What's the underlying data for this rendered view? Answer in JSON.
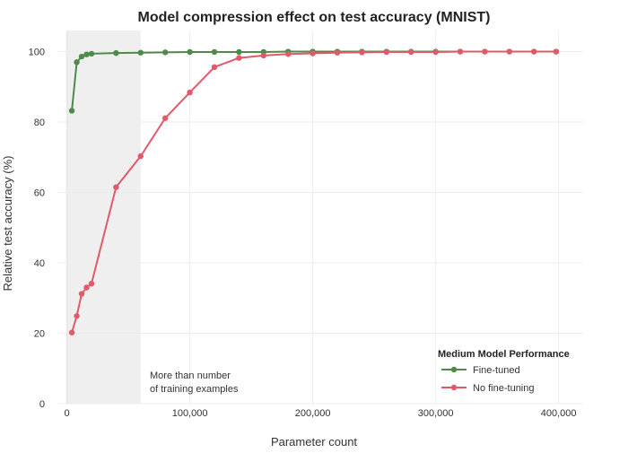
{
  "chart_data": {
    "type": "line",
    "title": "Model compression effect on test accuracy (MNIST)",
    "xlabel": "Parameter count",
    "ylabel": "Relative test accuracy (%)",
    "xlim": [
      -7000,
      420000
    ],
    "ylim": [
      0,
      106
    ],
    "x_ticks": [
      0,
      100000,
      200000,
      300000,
      400000
    ],
    "x_tick_labels": [
      "0",
      "100,000",
      "200,000",
      "300,000",
      "400,000"
    ],
    "y_ticks": [
      0,
      20,
      40,
      60,
      80,
      100
    ],
    "y_tick_labels": [
      "0",
      "20",
      "40",
      "60",
      "80",
      "100"
    ],
    "grid": true,
    "shaded_region": {
      "x_start": 0,
      "x_end": 60000
    },
    "annotation": [
      "More than number",
      "of training examples"
    ],
    "legend": {
      "title": "Medium Model Performance",
      "position": "bottom-right"
    },
    "series": [
      {
        "name": "Fine-tuned",
        "color": "#4f8a4a",
        "x": [
          4000,
          8000,
          12000,
          16000,
          20000,
          40000,
          60000,
          80000,
          100000,
          120000,
          140000,
          160000,
          180000,
          200000,
          220000,
          240000,
          260000,
          280000,
          300000,
          320000,
          340000,
          360000,
          380000,
          398000
        ],
        "values": [
          83.2,
          97.0,
          98.6,
          99.2,
          99.4,
          99.6,
          99.7,
          99.8,
          99.9,
          99.9,
          99.9,
          99.9,
          100,
          100,
          100,
          100,
          100,
          100,
          100,
          100,
          100,
          100,
          100,
          100
        ]
      },
      {
        "name": "No fine-tuning",
        "color": "#e05a6a",
        "x": [
          4000,
          8000,
          12000,
          16000,
          20000,
          40000,
          60000,
          80000,
          100000,
          120000,
          140000,
          160000,
          180000,
          200000,
          220000,
          240000,
          260000,
          280000,
          300000,
          320000,
          340000,
          360000,
          380000,
          398000
        ],
        "values": [
          20.2,
          24.9,
          31.2,
          33.0,
          34.1,
          61.5,
          70.3,
          81.1,
          88.4,
          95.6,
          98.2,
          98.9,
          99.3,
          99.5,
          99.7,
          99.8,
          99.9,
          99.9,
          99.9,
          100,
          100,
          100,
          100,
          100
        ]
      }
    ]
  }
}
